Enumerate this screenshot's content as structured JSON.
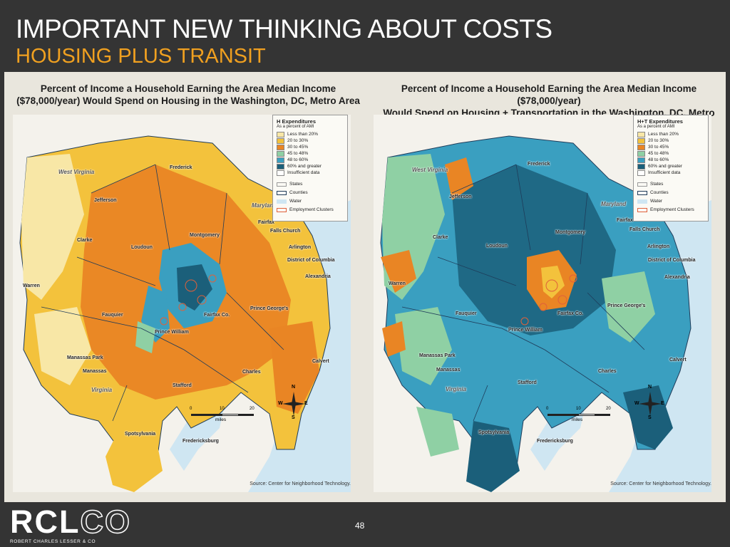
{
  "slide": {
    "title": "IMPORTANT NEW THINKING ABOUT COSTS",
    "subtitle": "HOUSING PLUS TRANSIT",
    "page_number": "48"
  },
  "footer": {
    "logo_solid": "RCL",
    "logo_outline": "CO",
    "tagline": "ROBERT CHARLES LESSER & CO"
  },
  "maps": [
    {
      "title_line1": "Percent of Income a Household Earning the Area Median Income",
      "title_line2": "($78,000/year) Would Spend on Housing in the Washington, DC, Metro Area",
      "legend_title": "H Expenditures",
      "legend_subtitle": "As a percent of AMI",
      "source": "Source: Center for Neighborhood Technology."
    },
    {
      "title_line1": "Percent of Income a Household Earning the Area Median Income ($78,000/year)",
      "title_line2": "Would Spend on Housing + Transportation in the Washington, DC, Metro Area",
      "legend_title": "H+T Expenditures",
      "legend_subtitle": "As a percent of AMI",
      "source": "Source: Center for Neighborhood Technology."
    }
  ],
  "legend_classes": [
    {
      "label": "Less than 20%",
      "color": "#f8e7a6"
    },
    {
      "label": "20 to 30%",
      "color": "#f3c23c"
    },
    {
      "label": "30 to 45%",
      "color": "#e98524"
    },
    {
      "label": "45 to 48%",
      "color": "#8fd0a4"
    },
    {
      "label": "48 to 60%",
      "color": "#3a9fc0"
    },
    {
      "label": "60% and greater",
      "color": "#1b5f7a"
    },
    {
      "label": "Insufficient data",
      "color": "#ffffff"
    }
  ],
  "legend_boundaries": [
    {
      "label": "States",
      "color": "#999999"
    },
    {
      "label": "Counties",
      "color": "#1f3c5a"
    },
    {
      "label": "Water",
      "color": "#cfe6f2"
    },
    {
      "label": "Employment Clusters",
      "color": "#e0603a"
    }
  ],
  "place_labels": {
    "frederick": "Frederick",
    "west_virginia": "West Virginia",
    "jefferson": "Jefferson",
    "maryland": "Maryland",
    "clarke": "Clarke",
    "loudoun": "Loudoun",
    "montgomery": "Montgomery",
    "fairfax": "Fairfax",
    "falls_church": "Falls Church",
    "arlington": "Arlington",
    "dc": "District of Columbia",
    "alexandria": "Alexandria",
    "warren": "Warren",
    "fauquier": "Fauquier",
    "fairfax_co": "Fairfax Co.",
    "prince_georges": "Prince George's",
    "prince_william": "Prince William",
    "manassas_park": "Manassas Park",
    "manassas": "Manassas",
    "calvert": "Calvert",
    "charles": "Charles",
    "stafford": "Stafford",
    "virginia": "Virginia",
    "spotsylvania": "Spotsylvania",
    "fredericksburg": "Fredericksburg"
  },
  "scale": {
    "ticks": [
      "0",
      "10",
      "20"
    ],
    "unit": "miles"
  },
  "compass": {
    "n": "N",
    "s": "S",
    "e": "E",
    "w": "W"
  }
}
